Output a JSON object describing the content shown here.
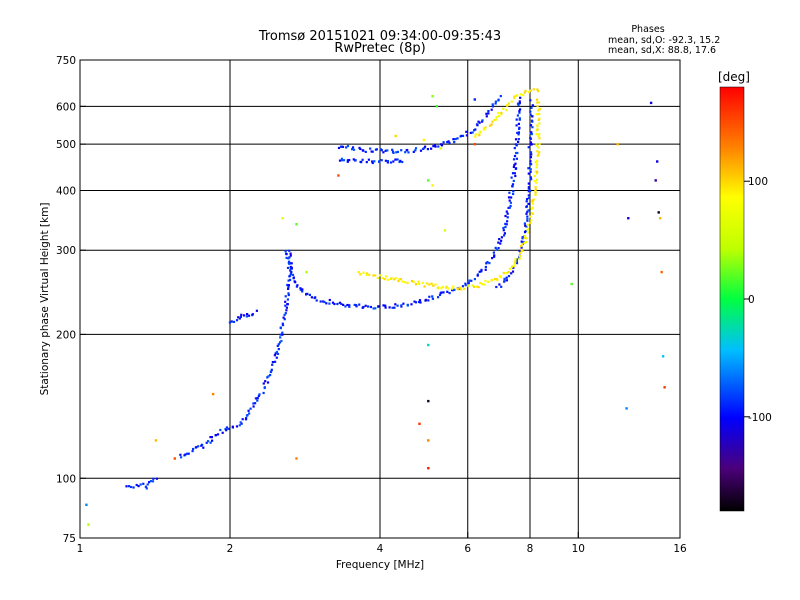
{
  "chart_data": {
    "type": "scatter",
    "title": "Tromsø 20151021 09:34:00-09:35:43",
    "subtitle": "RwPretec (8p)",
    "stats": {
      "heading": "Phases",
      "line_o": "mean, sd,O: -92.3, 15.2",
      "line_x": "mean, sd,X:  88.8, 17.6"
    },
    "xlabel": "Frequency [MHz]",
    "ylabel": "Stationary phase Virtual Height [km]",
    "x_scale": "log",
    "y_scale": "log",
    "xlim": [
      1,
      16
    ],
    "ylim": [
      75,
      750
    ],
    "x_ticks": [
      {
        "v": 1,
        "label": "1"
      },
      {
        "v": 2,
        "label": "2"
      },
      {
        "v": 4,
        "label": "4"
      },
      {
        "v": 6,
        "label": "6"
      },
      {
        "v": 8,
        "label": "8"
      },
      {
        "v": 10,
        "label": "10"
      },
      {
        "v": 16,
        "label": "16"
      }
    ],
    "y_ticks": [
      {
        "v": 75,
        "label": "75"
      },
      {
        "v": 100,
        "label": "100"
      },
      {
        "v": 200,
        "label": "200"
      },
      {
        "v": 300,
        "label": "300"
      },
      {
        "v": 400,
        "label": "400"
      },
      {
        "v": 500,
        "label": "500"
      },
      {
        "v": 600,
        "label": "600"
      },
      {
        "v": 750,
        "label": "750"
      }
    ],
    "x_gridlines": [
      2,
      4,
      6,
      8,
      10
    ],
    "y_gridlines": [
      100,
      200,
      300,
      400,
      500,
      600
    ],
    "grid": true,
    "colorbar": {
      "label": "[deg]",
      "range": [
        -180,
        180
      ],
      "ticks": [
        {
          "v": 100,
          "label": "100"
        },
        {
          "v": 0,
          "label": "0"
        },
        {
          "v": -100,
          "label": "-100"
        }
      ]
    },
    "series": [
      {
        "mode": "O",
        "phase_deg": -92,
        "color": "#1a40ff",
        "traces": [
          [
            [
              1.25,
              97
            ],
            [
              1.28,
              96
            ],
            [
              1.32,
              97
            ],
            [
              1.36,
              96
            ],
            [
              1.4,
              99
            ],
            [
              1.44,
              100
            ]
          ],
          [
            [
              1.58,
              111
            ],
            [
              1.62,
              111
            ],
            [
              1.7,
              116
            ],
            [
              1.78,
              117
            ],
            [
              1.88,
              124
            ],
            [
              1.98,
              127
            ],
            [
              2.08,
              130
            ],
            [
              2.14,
              133
            ],
            [
              2.2,
              140
            ],
            [
              2.26,
              145
            ],
            [
              2.32,
              152
            ],
            [
              2.38,
              160
            ],
            [
              2.44,
              170
            ],
            [
              2.48,
              183
            ],
            [
              2.52,
              195
            ],
            [
              2.55,
              210
            ],
            [
              2.58,
              223
            ],
            [
              2.6,
              237
            ],
            [
              2.62,
              255
            ],
            [
              2.64,
              275
            ],
            [
              2.65,
              300
            ]
          ],
          [
            [
              2.0,
              213
            ],
            [
              2.05,
              215
            ],
            [
              2.12,
              218
            ],
            [
              2.2,
              220
            ],
            [
              2.28,
              225
            ]
          ],
          [
            [
              2.6,
              300
            ],
            [
              2.62,
              280
            ],
            [
              2.68,
              262
            ],
            [
              2.75,
              250
            ],
            [
              2.85,
              242
            ],
            [
              3.0,
              236
            ],
            [
              3.3,
              232
            ],
            [
              3.6,
              229
            ],
            [
              4.0,
              228
            ],
            [
              4.4,
              230
            ],
            [
              4.8,
              234
            ],
            [
              5.2,
              240
            ],
            [
              5.6,
              247
            ],
            [
              6.0,
              256
            ],
            [
              6.4,
              270
            ],
            [
              6.8,
              292
            ],
            [
              7.1,
              330
            ],
            [
              7.3,
              380
            ],
            [
              7.45,
              440
            ],
            [
              7.55,
              520
            ],
            [
              7.6,
              600
            ],
            [
              7.62,
              630
            ]
          ],
          [
            [
              6.9,
              250
            ],
            [
              7.2,
              262
            ],
            [
              7.5,
              282
            ],
            [
              7.75,
              310
            ],
            [
              7.9,
              360
            ],
            [
              7.98,
              420
            ],
            [
              8.02,
              500
            ],
            [
              8.04,
              580
            ],
            [
              8.05,
              620
            ]
          ],
          [
            [
              3.3,
              495
            ],
            [
              3.5,
              490
            ],
            [
              3.8,
              485
            ],
            [
              4.2,
              483
            ],
            [
              4.6,
              485
            ],
            [
              5.0,
              490
            ],
            [
              5.4,
              500
            ],
            [
              5.8,
              515
            ],
            [
              6.2,
              540
            ],
            [
              6.5,
              570
            ],
            [
              6.8,
              605
            ],
            [
              7.0,
              630
            ]
          ],
          [
            [
              3.3,
              465
            ],
            [
              3.6,
              462
            ],
            [
              4.0,
              460
            ],
            [
              4.5,
              462
            ]
          ]
        ]
      },
      {
        "mode": "X",
        "phase_deg": 89,
        "color": "#e8e800",
        "traces": [
          [
            [
              3.6,
              270
            ],
            [
              3.9,
              265
            ],
            [
              4.3,
              260
            ],
            [
              4.8,
              255
            ],
            [
              5.3,
              251
            ],
            [
              5.8,
              250
            ],
            [
              6.3,
              253
            ],
            [
              6.8,
              260
            ],
            [
              7.2,
              270
            ],
            [
              7.5,
              285
            ],
            [
              7.8,
              310
            ],
            [
              8.0,
              345
            ],
            [
              8.15,
              390
            ],
            [
              8.25,
              440
            ],
            [
              8.3,
              500
            ],
            [
              8.32,
              560
            ],
            [
              8.33,
              630
            ]
          ],
          [
            [
              6.2,
              520
            ],
            [
              6.6,
              545
            ],
            [
              7.0,
              580
            ],
            [
              7.4,
              620
            ],
            [
              7.8,
              640
            ],
            [
              8.1,
              648
            ],
            [
              8.4,
              645
            ]
          ]
        ]
      },
      {
        "mode": "scattered",
        "points": [
          [
            1.03,
            88,
            -60
          ],
          [
            1.04,
            80,
            40
          ],
          [
            1.42,
            120,
            110
          ],
          [
            1.55,
            110,
            150
          ],
          [
            1.85,
            150,
            130
          ],
          [
            2.55,
            350,
            70
          ],
          [
            2.72,
            340,
            20
          ],
          [
            2.85,
            270,
            40
          ],
          [
            2.72,
            110,
            130
          ],
          [
            3.3,
            430,
            150
          ],
          [
            4.3,
            520,
            100
          ],
          [
            4.9,
            510,
            90
          ],
          [
            5.1,
            630,
            30
          ],
          [
            5.2,
            600,
            10
          ],
          [
            5.3,
            490,
            60
          ],
          [
            5.0,
            420,
            20
          ],
          [
            5.1,
            410,
            90
          ],
          [
            5.4,
            330,
            60
          ],
          [
            5.0,
            190,
            -30
          ],
          [
            4.8,
            130,
            160
          ],
          [
            5.0,
            105,
            170
          ],
          [
            5.0,
            120,
            130
          ],
          [
            5.0,
            145,
            -170
          ],
          [
            6.2,
            620,
            -90
          ],
          [
            6.2,
            500,
            150
          ],
          [
            9.7,
            255,
            20
          ],
          [
            12.0,
            500,
            110
          ],
          [
            12.5,
            140,
            -60
          ],
          [
            12.6,
            350,
            -120
          ],
          [
            14.0,
            610,
            -110
          ],
          [
            14.3,
            420,
            -130
          ],
          [
            14.5,
            360,
            -170
          ],
          [
            14.7,
            270,
            140
          ],
          [
            14.8,
            180,
            -40
          ],
          [
            14.9,
            155,
            160
          ],
          [
            14.6,
            350,
            110
          ],
          [
            14.4,
            460,
            -110
          ]
        ]
      }
    ]
  }
}
